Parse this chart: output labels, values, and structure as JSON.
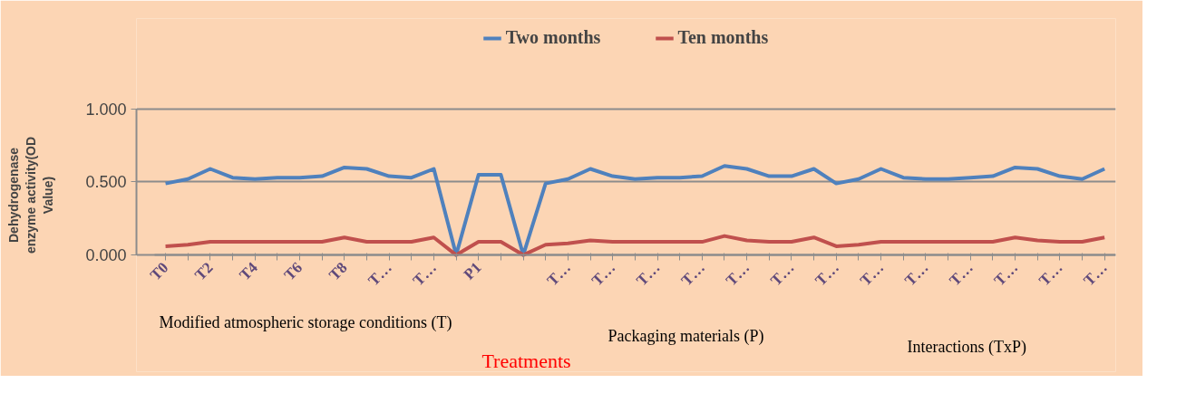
{
  "chart_data": {
    "type": "line",
    "ylabel": "Dehydrogenase enzyme activity(OD Value)",
    "xlabel": "Treatments",
    "categories": [
      "T0",
      null,
      "T2",
      null,
      "T4",
      null,
      "T6",
      null,
      "T8",
      null,
      "T…",
      null,
      "T…",
      null,
      "P1",
      null,
      null,
      null,
      "T…",
      null,
      "T…",
      null,
      "T…",
      null,
      "T…",
      null,
      "T…",
      null,
      "T…",
      null,
      "T…",
      null,
      "T…",
      null,
      "T…",
      null,
      "T…",
      null,
      "T…",
      null,
      "T…",
      null,
      "T…"
    ],
    "series": [
      {
        "name": "Two months",
        "color": "#4f81bd",
        "values": [
          0.49,
          0.52,
          0.59,
          0.53,
          0.52,
          0.53,
          0.53,
          0.54,
          0.6,
          0.59,
          0.54,
          0.53,
          0.59,
          0,
          0.55,
          0.55,
          0,
          0.49,
          0.52,
          0.59,
          0.54,
          0.52,
          0.53,
          0.53,
          0.54,
          0.61,
          0.59,
          0.54,
          0.54,
          0.59,
          0.49,
          0.52,
          0.59,
          0.53,
          0.52,
          0.52,
          0.53,
          0.54,
          0.6,
          0.59,
          0.54,
          0.52,
          0.59
        ]
      },
      {
        "name": "Ten months",
        "color": "#c0504d",
        "values": [
          0.06,
          0.07,
          0.09,
          0.09,
          0.09,
          0.09,
          0.09,
          0.09,
          0.12,
          0.09,
          0.09,
          0.09,
          0.12,
          0,
          0.09,
          0.09,
          0,
          0.07,
          0.08,
          0.1,
          0.09,
          0.09,
          0.09,
          0.09,
          0.09,
          0.13,
          0.1,
          0.09,
          0.09,
          0.12,
          0.06,
          0.07,
          0.09,
          0.09,
          0.09,
          0.09,
          0.09,
          0.09,
          0.12,
          0.1,
          0.09,
          0.09,
          0.12
        ]
      }
    ],
    "ylim": [
      0,
      1.0
    ],
    "yticks": [
      {
        "value": 0,
        "label": "0.000"
      },
      {
        "value": 0.5,
        "label": "0.500"
      },
      {
        "value": 1.0,
        "label": "1.000"
      }
    ],
    "grid": "y",
    "legend": "top",
    "marker": "none",
    "line_style": "solid",
    "annotations": [
      "Modified atmospheric storage conditions (T)",
      "Packaging materials (P)",
      "Interactions (TxP)"
    ]
  }
}
